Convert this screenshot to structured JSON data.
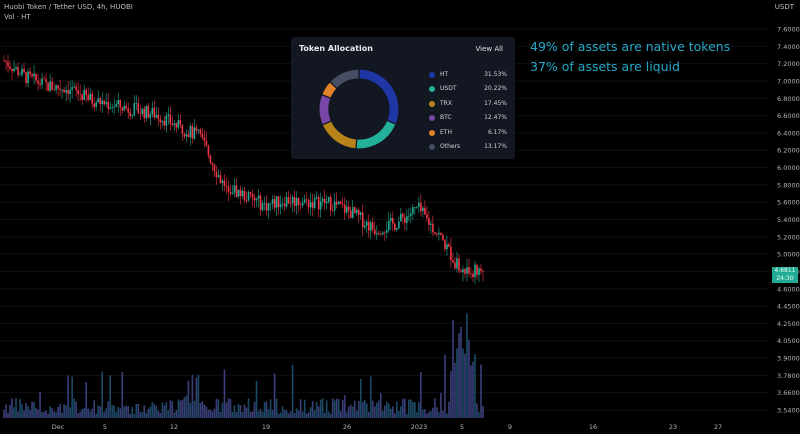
{
  "chart_header": {
    "title": "Huobi Token / Tether USD, 4h, HUOBI",
    "indicator": "Vol · HT"
  },
  "price_axis_unit": "USDT",
  "current_price": {
    "value": "4.6811",
    "countdown": "24:30"
  },
  "chart_data": {
    "type": "candlestick",
    "yaxis_scale": "log",
    "ylim": [
      3.5,
      7.8
    ],
    "yticks": [
      "7.6000",
      "7.4000",
      "7.2000",
      "7.0000",
      "6.8000",
      "6.6000",
      "6.4000",
      "6.2000",
      "6.0000",
      "5.8000",
      "5.6000",
      "5.4000",
      "5.2000",
      "5.0000",
      "4.8000",
      "4.6000",
      "4.4500",
      "4.2500",
      "4.0500",
      "3.9000",
      "3.7800",
      "3.6600",
      "3.5400"
    ],
    "xticks": [
      "Dec",
      "5",
      "12",
      "19",
      "26",
      "2023",
      "5",
      "9",
      "16",
      "23",
      "27"
    ],
    "close_path": [
      [
        "Nov 28",
        7.3
      ],
      [
        "Nov 30",
        7.05
      ],
      [
        "Dec 2",
        6.92
      ],
      [
        "Dec 5",
        6.88
      ],
      [
        "Dec 8",
        6.72
      ],
      [
        "Dec 10",
        6.65
      ],
      [
        "Dec 12",
        6.58
      ],
      [
        "Dec 14",
        6.52
      ],
      [
        "Dec 16",
        6.35
      ],
      [
        "Dec 17",
        6.22
      ],
      [
        "Dec 18",
        5.65
      ],
      [
        "Dec 19",
        5.5
      ],
      [
        "Dec 21",
        5.38
      ],
      [
        "Dec 23",
        5.45
      ],
      [
        "Dec 25",
        5.42
      ],
      [
        "Dec 27",
        5.41
      ],
      [
        "Dec 29",
        5.3
      ],
      [
        "Dec 31",
        5.12
      ],
      [
        "Jan 2",
        5.18
      ],
      [
        "Jan 4",
        5.35
      ],
      [
        "Jan 5",
        5.05
      ],
      [
        "Jan 6",
        4.68
      ],
      [
        "Jan 7",
        4.7
      ]
    ],
    "volume_note": "volume bars with spikes near Dec 18 and Jan 5",
    "candle_colors": {
      "up": "#22ab94",
      "down": "#f23645"
    }
  },
  "allocation": {
    "title": "Token Allocation",
    "view_all": "View All",
    "items": [
      {
        "name": "HT",
        "value": "31.53%",
        "pct": 31.53,
        "color": "#1f37a6"
      },
      {
        "name": "USDT",
        "value": "20.22%",
        "pct": 20.22,
        "color": "#22b09a"
      },
      {
        "name": "TRX",
        "value": "17.45%",
        "pct": 17.45,
        "color": "#b88419"
      },
      {
        "name": "BTC",
        "value": "12.47%",
        "pct": 12.47,
        "color": "#7846a6"
      },
      {
        "name": "ETH",
        "value": "6.17%",
        "pct": 6.17,
        "color": "#e0822a"
      },
      {
        "name": "Others",
        "value": "13.17%",
        "pct": 13.17,
        "color": "#454e63"
      }
    ]
  },
  "notes": [
    "49% of assets are native tokens",
    "37% of assets are liquid"
  ]
}
